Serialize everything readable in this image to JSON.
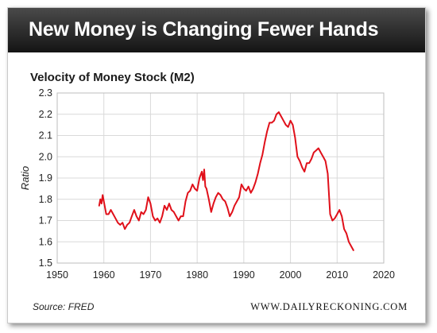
{
  "header": {
    "title": "New Money is Changing Fewer Hands"
  },
  "footer": {
    "source": "Source: FRED",
    "website": "WWW.DAILYRECKONING.COM"
  },
  "colors": {
    "line": "#e0101a",
    "banner": "#222222",
    "grid": "#d9d9d9"
  },
  "chart_data": {
    "type": "line",
    "title": "Velocity of Money Stock (M2)",
    "xlabel": "",
    "ylabel": "Ratio",
    "xlim": [
      1950,
      2020
    ],
    "ylim": [
      1.5,
      2.3
    ],
    "x_ticks": [
      1950,
      1960,
      1970,
      1980,
      1990,
      2000,
      2010,
      2020
    ],
    "y_ticks": [
      1.5,
      1.6,
      1.7,
      1.8,
      1.9,
      2.0,
      2.1,
      2.2,
      2.3
    ],
    "grid": true,
    "series": [
      {
        "name": "",
        "x": [
          1959.0,
          1959.25,
          1959.5,
          1959.75,
          1960.0,
          1960.5,
          1961.0,
          1961.5,
          1962.0,
          1962.5,
          1963.0,
          1963.5,
          1964.0,
          1964.5,
          1965.0,
          1965.5,
          1966.0,
          1966.5,
          1967.0,
          1967.5,
          1968.0,
          1968.5,
          1969.0,
          1969.5,
          1970.0,
          1970.5,
          1971.0,
          1971.5,
          1972.0,
          1972.5,
          1973.0,
          1973.5,
          1974.0,
          1974.5,
          1975.0,
          1975.5,
          1976.0,
          1976.5,
          1977.0,
          1977.5,
          1978.0,
          1978.5,
          1979.0,
          1979.5,
          1980.0,
          1980.5,
          1981.0,
          1981.25,
          1981.5,
          1981.75,
          1982.0,
          1982.5,
          1983.0,
          1983.5,
          1984.0,
          1984.5,
          1985.0,
          1985.5,
          1986.0,
          1986.5,
          1987.0,
          1987.5,
          1988.0,
          1988.5,
          1989.0,
          1989.5,
          1990.0,
          1990.5,
          1991.0,
          1991.5,
          1992.0,
          1992.5,
          1993.0,
          1993.5,
          1994.0,
          1994.5,
          1995.0,
          1995.5,
          1996.0,
          1996.5,
          1997.0,
          1997.5,
          1998.0,
          1998.5,
          1999.0,
          1999.5,
          2000.0,
          2000.5,
          2001.0,
          2001.5,
          2002.0,
          2002.5,
          2003.0,
          2003.5,
          2004.0,
          2004.5,
          2005.0,
          2005.5,
          2006.0,
          2006.5,
          2007.0,
          2007.5,
          2008.0,
          2008.5,
          2009.0,
          2009.5,
          2010.0,
          2010.5,
          2011.0,
          2011.5,
          2012.0,
          2012.5,
          2013.0,
          2013.5
        ],
        "y": [
          1.77,
          1.8,
          1.78,
          1.82,
          1.79,
          1.73,
          1.73,
          1.75,
          1.73,
          1.71,
          1.69,
          1.68,
          1.69,
          1.66,
          1.68,
          1.69,
          1.72,
          1.75,
          1.72,
          1.7,
          1.74,
          1.73,
          1.75,
          1.81,
          1.78,
          1.72,
          1.7,
          1.71,
          1.69,
          1.72,
          1.77,
          1.75,
          1.78,
          1.75,
          1.74,
          1.72,
          1.7,
          1.72,
          1.72,
          1.79,
          1.83,
          1.84,
          1.87,
          1.85,
          1.84,
          1.9,
          1.93,
          1.89,
          1.94,
          1.86,
          1.85,
          1.8,
          1.74,
          1.78,
          1.81,
          1.83,
          1.82,
          1.8,
          1.79,
          1.76,
          1.72,
          1.74,
          1.77,
          1.79,
          1.81,
          1.87,
          1.85,
          1.84,
          1.86,
          1.83,
          1.85,
          1.88,
          1.92,
          1.97,
          2.01,
          2.07,
          2.12,
          2.16,
          2.16,
          2.17,
          2.2,
          2.21,
          2.19,
          2.17,
          2.15,
          2.14,
          2.17,
          2.15,
          2.09,
          2.0,
          1.98,
          1.95,
          1.93,
          1.97,
          1.97,
          1.99,
          2.02,
          2.03,
          2.04,
          2.02,
          2.0,
          1.98,
          1.92,
          1.73,
          1.7,
          1.71,
          1.73,
          1.75,
          1.72,
          1.66,
          1.64,
          1.6,
          1.58,
          1.56
        ]
      }
    ]
  }
}
